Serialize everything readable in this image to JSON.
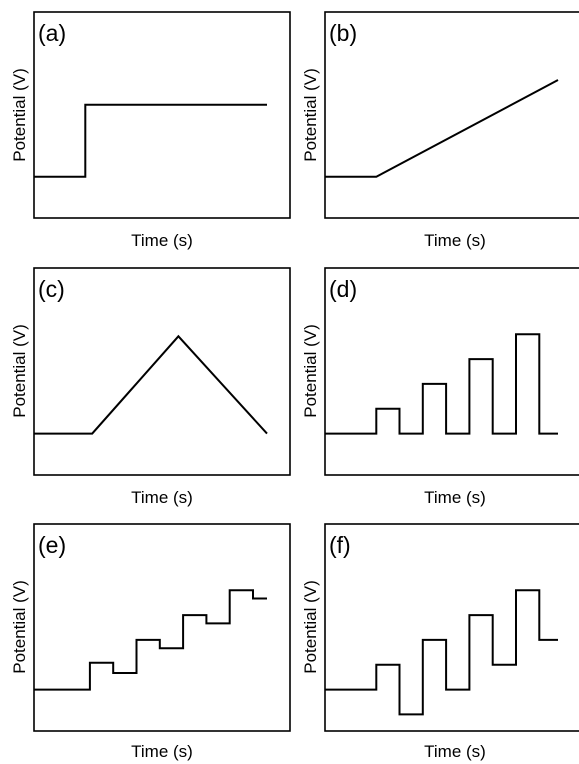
{
  "panels": [
    {
      "label": "(a)",
      "xlabel": "Time (s)",
      "ylabel": "Potential (V)",
      "waveform": "potential-step",
      "points": [
        [
          0,
          0.2
        ],
        [
          0.22,
          0.2
        ],
        [
          0.22,
          0.55
        ],
        [
          1.0,
          0.55
        ]
      ]
    },
    {
      "label": "(b)",
      "xlabel": "Time (s)",
      "ylabel": "Potential (V)",
      "waveform": "linear-sweep",
      "points": [
        [
          0,
          0.2
        ],
        [
          0.22,
          0.2
        ],
        [
          1.0,
          0.67
        ]
      ]
    },
    {
      "label": "(c)",
      "xlabel": "Time (s)",
      "ylabel": "Potential (V)",
      "waveform": "cyclic-sweep",
      "points": [
        [
          0,
          0.2
        ],
        [
          0.25,
          0.2
        ],
        [
          0.62,
          0.67
        ],
        [
          1.0,
          0.2
        ]
      ]
    },
    {
      "label": "(d)",
      "xlabel": "Time (s)",
      "ylabel": "Potential (V)",
      "waveform": "normal-pulse",
      "points": [
        [
          0,
          0.2
        ],
        [
          0.22,
          0.2
        ],
        [
          0.22,
          0.32
        ],
        [
          0.32,
          0.32
        ],
        [
          0.32,
          0.2
        ],
        [
          0.42,
          0.2
        ],
        [
          0.42,
          0.44
        ],
        [
          0.52,
          0.44
        ],
        [
          0.52,
          0.2
        ],
        [
          0.62,
          0.2
        ],
        [
          0.62,
          0.56
        ],
        [
          0.72,
          0.56
        ],
        [
          0.72,
          0.2
        ],
        [
          0.82,
          0.2
        ],
        [
          0.82,
          0.68
        ],
        [
          0.92,
          0.68
        ],
        [
          0.92,
          0.2
        ],
        [
          1.0,
          0.2
        ]
      ]
    },
    {
      "label": "(e)",
      "xlabel": "Time (s)",
      "ylabel": "Potential (V)",
      "waveform": "differential-pulse",
      "points": [
        [
          0,
          0.2
        ],
        [
          0.24,
          0.2
        ],
        [
          0.24,
          0.33
        ],
        [
          0.34,
          0.33
        ],
        [
          0.34,
          0.28
        ],
        [
          0.44,
          0.28
        ],
        [
          0.44,
          0.44
        ],
        [
          0.54,
          0.44
        ],
        [
          0.54,
          0.4
        ],
        [
          0.64,
          0.4
        ],
        [
          0.64,
          0.56
        ],
        [
          0.74,
          0.56
        ],
        [
          0.74,
          0.52
        ],
        [
          0.84,
          0.52
        ],
        [
          0.84,
          0.68
        ],
        [
          0.94,
          0.68
        ],
        [
          0.94,
          0.64
        ],
        [
          1.0,
          0.64
        ]
      ]
    },
    {
      "label": "(f)",
      "xlabel": "Time (s)",
      "ylabel": "Potential (V)",
      "waveform": "square-wave",
      "points": [
        [
          0,
          0.2
        ],
        [
          0.22,
          0.2
        ],
        [
          0.22,
          0.32
        ],
        [
          0.32,
          0.32
        ],
        [
          0.32,
          0.08
        ],
        [
          0.42,
          0.08
        ],
        [
          0.42,
          0.44
        ],
        [
          0.52,
          0.44
        ],
        [
          0.52,
          0.2
        ],
        [
          0.62,
          0.2
        ],
        [
          0.62,
          0.56
        ],
        [
          0.72,
          0.56
        ],
        [
          0.72,
          0.32
        ],
        [
          0.82,
          0.32
        ],
        [
          0.82,
          0.68
        ],
        [
          0.92,
          0.68
        ],
        [
          0.92,
          0.44
        ],
        [
          1.0,
          0.44
        ]
      ]
    }
  ]
}
